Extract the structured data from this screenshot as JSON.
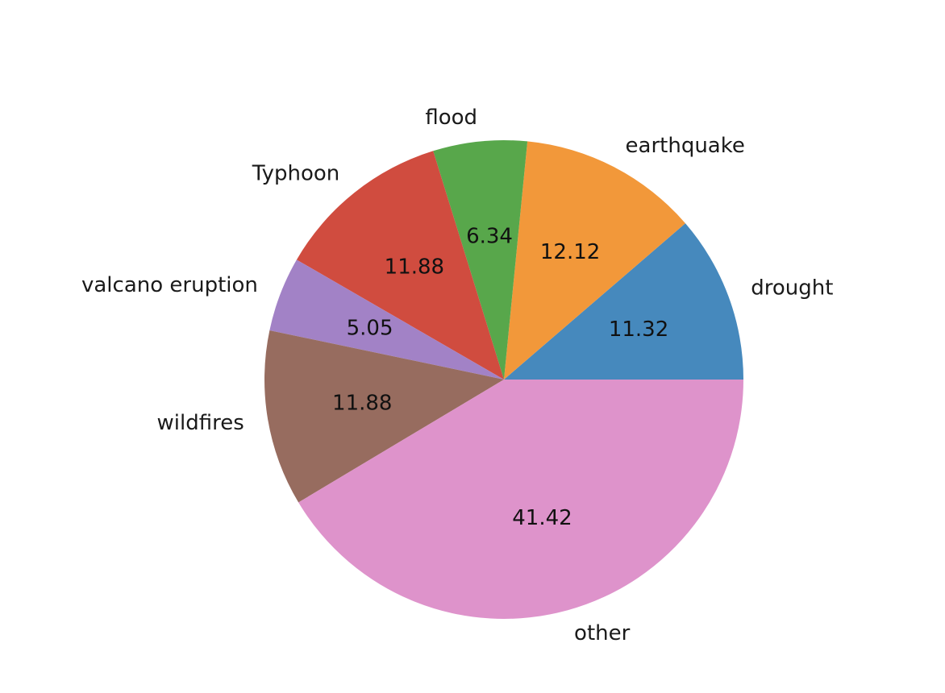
{
  "chart_data": {
    "type": "pie",
    "title": "",
    "start_angle_deg": 0,
    "direction": "counterclockwise",
    "slices": [
      {
        "label": "drought",
        "value": 11.32,
        "display": "11.32",
        "color": "#4689bd"
      },
      {
        "label": "earthquake",
        "value": 12.12,
        "display": "12.12",
        "color": "#f2983a"
      },
      {
        "label": "flood",
        "value": 6.34,
        "display": "6.34",
        "color": "#58a74b"
      },
      {
        "label": "Typhoon",
        "value": 11.88,
        "display": "11.88",
        "color": "#d04c3f"
      },
      {
        "label": "valcano eruption",
        "value": 5.05,
        "display": "5.05",
        "color": "#a282c6"
      },
      {
        "label": "wildfires",
        "value": 11.88,
        "display": "11.88",
        "color": "#976c5f"
      },
      {
        "label": "other",
        "value": 41.42,
        "display": "41.42",
        "color": "#de93cb"
      }
    ]
  }
}
